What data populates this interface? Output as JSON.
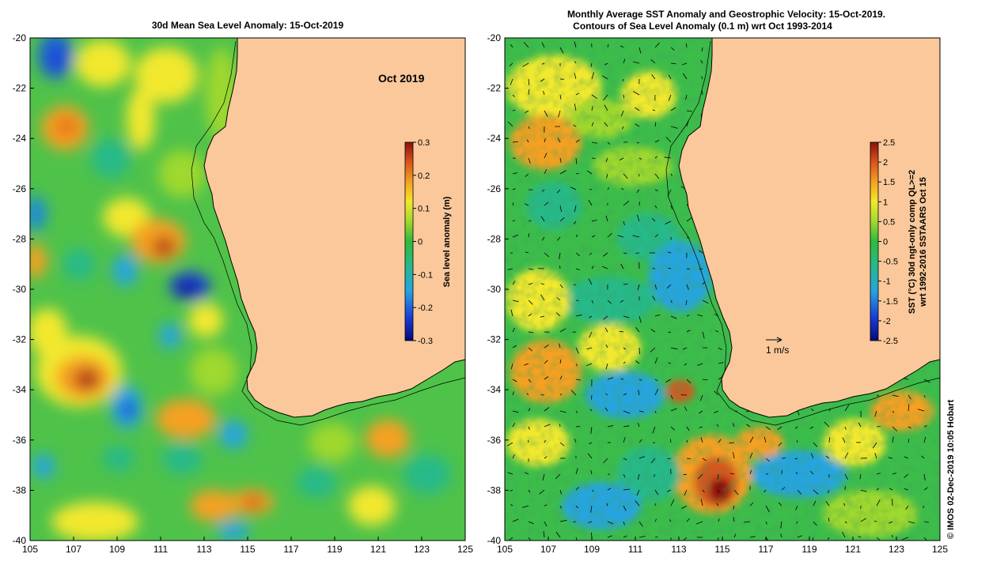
{
  "left_panel": {
    "title": "30d Mean Sea Level Anomaly: 15-Oct-2019",
    "month_label": "Oct 2019",
    "colorbar": {
      "label": "Sea level anomaly (m)",
      "ticks": [
        "0.3",
        "0.2",
        "0.1",
        "0",
        "-0.1",
        "-0.2",
        "-0.3"
      ],
      "range": [
        -0.3,
        0.3
      ]
    },
    "x_ticks": [
      "105",
      "107",
      "109",
      "111",
      "113",
      "115",
      "117",
      "119",
      "121",
      "123",
      "125"
    ],
    "y_ticks": [
      "-20",
      "-22",
      "-24",
      "-26",
      "-28",
      "-30",
      "-32",
      "-34",
      "-36",
      "-38",
      "-40"
    ],
    "lon_range": [
      105,
      125
    ],
    "lat_range": [
      -40,
      -20
    ]
  },
  "right_panel": {
    "title_line1": "Monthly Average SST Anomaly  and Geostrophic Velocity: 15-Oct-2019.",
    "title_line2": "Contours of Sea Level Anomaly (0.1 m) wrt Oct 1993-2014",
    "velocity_scale_label": "1 m/s",
    "colorbar": {
      "label_line1": "SST (°C) 30d ngt-only comp QL>=2",
      "label_line2": "wrt 1992-2016 SSTAARS Oct 15",
      "ticks": [
        "2.5",
        "2",
        "1.5",
        "1",
        "0.5",
        "0",
        "-0.5",
        "-1",
        "-1.5",
        "-2",
        "-2.5"
      ],
      "range": [
        -2.5,
        2.5
      ]
    },
    "x_ticks": [
      "105",
      "107",
      "109",
      "111",
      "113",
      "115",
      "117",
      "119",
      "121",
      "123",
      "125"
    ],
    "y_ticks": [
      "-20",
      "-22",
      "-24",
      "-26",
      "-28",
      "-30",
      "-32",
      "-34",
      "-36",
      "-38",
      "-40"
    ],
    "lon_range": [
      105,
      125
    ],
    "lat_range": [
      -40,
      -20
    ]
  },
  "credit": "© IMOS 02-Dec-2019 10:05 Hobart",
  "colors": {
    "land": "#fac89a",
    "ocean_base": "#4fc24a",
    "scale_stops": [
      "#08087a",
      "#1b3fd6",
      "#25a4e0",
      "#27b98a",
      "#2dbb3c",
      "#9fd82f",
      "#f2e82d",
      "#f5a022",
      "#d9541b",
      "#8b1010"
    ]
  }
}
